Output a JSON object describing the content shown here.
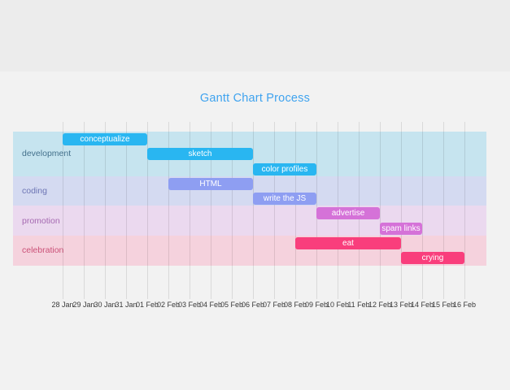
{
  "chart_data": {
    "type": "gantt",
    "title": "Gantt Chart Process",
    "title_color": "#3fa3ef",
    "grid_color": "rgba(0,0,0,0.10)",
    "tick_color": "#3a3a3a",
    "legend_position": "none",
    "x_ticks": [
      "28 Jan",
      "29 Jan",
      "30 Jan",
      "31 Jan",
      "01 Feb",
      "02 Feb",
      "03 Feb",
      "04 Feb",
      "05 Feb",
      "06 Feb",
      "07 Feb",
      "08 Feb",
      "09 Feb",
      "10 Feb",
      "11 Feb",
      "12 Feb",
      "13 Feb",
      "14 Feb",
      "15 Feb",
      "16 Feb"
    ],
    "groups": [
      {
        "name": "development",
        "label_color": "#44718c",
        "band_color": "#c6e4ef",
        "bar_color": "#29b6f1",
        "tasks": [
          {
            "label": "conceptualize",
            "start": "28 Jan",
            "end": "01 Feb",
            "start_index": 0,
            "end_index": 4
          },
          {
            "label": "sketch",
            "start": "01 Feb",
            "end": "06 Feb",
            "start_index": 4,
            "end_index": 9
          },
          {
            "label": "color profiles",
            "start": "06 Feb",
            "end": "09 Feb",
            "start_index": 9,
            "end_index": 12
          }
        ]
      },
      {
        "name": "coding",
        "label_color": "#6d75b4",
        "band_color": "#d4daf1",
        "bar_color": "#8e9ef2",
        "tasks": [
          {
            "label": "HTML",
            "start": "02 Feb",
            "end": "06 Feb",
            "start_index": 5,
            "end_index": 9
          },
          {
            "label": "write the JS",
            "start": "06 Feb",
            "end": "09 Feb",
            "start_index": 9,
            "end_index": 12
          }
        ]
      },
      {
        "name": "promotion",
        "label_color": "#a569b1",
        "band_color": "#ebd9ef",
        "bar_color": "#d572d8",
        "tasks": [
          {
            "label": "advertise",
            "start": "09 Feb",
            "end": "12 Feb",
            "start_index": 12,
            "end_index": 15
          },
          {
            "label": "spam links",
            "start": "12 Feb",
            "end": "14 Feb",
            "start_index": 15,
            "end_index": 17
          }
        ]
      },
      {
        "name": "celebration",
        "label_color": "#ca5077",
        "band_color": "#f5d2dd",
        "bar_color": "#f93e7c",
        "tasks": [
          {
            "label": "eat",
            "start": "08 Feb",
            "end": "13 Feb",
            "start_index": 11,
            "end_index": 16
          },
          {
            "label": "crying",
            "start": "13 Feb",
            "end": "16 Feb",
            "start_index": 16,
            "end_index": 19
          }
        ]
      }
    ]
  }
}
